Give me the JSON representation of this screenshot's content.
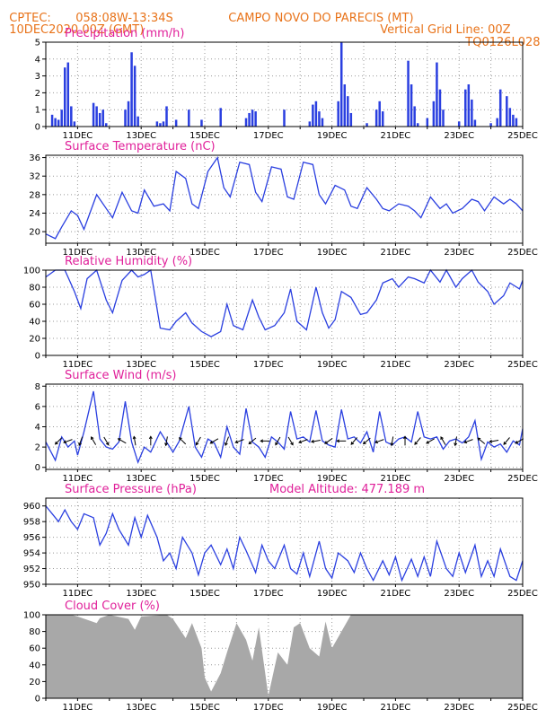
{
  "header": {
    "line1_left": "CPTEC:",
    "line1_coords": "058:08W-13:34S",
    "line1_place": "CAMPO NOVO DO PARECIS (MT)",
    "line2_left": "10DEC2020 00Z (GMT)",
    "line2_right": "Vertical Grid Line: 00Z",
    "line3_right": "TQ0126L028"
  },
  "colors": {
    "header": "#e8731a",
    "title": "#e0209a",
    "series": "#2a3fe0",
    "cloud": "#a8a8a8"
  },
  "x_axis": {
    "labels": [
      "11DEC",
      "13DEC",
      "15DEC",
      "17DEC",
      "19DEC",
      "21DEC",
      "23DEC",
      "25DEC"
    ]
  },
  "chart_data": [
    {
      "id": "precip",
      "type": "bar",
      "title": "Precipitation (mm/h)",
      "ylim": [
        0,
        5
      ],
      "yticks": [
        0,
        1,
        2,
        3,
        4,
        5
      ],
      "xlim_days": [
        10,
        25
      ],
      "x_days": [
        10.2,
        10.3,
        10.4,
        10.5,
        10.6,
        10.7,
        10.8,
        10.9,
        11.5,
        11.6,
        11.7,
        11.8,
        11.9,
        12.5,
        12.6,
        12.7,
        12.8,
        12.9,
        13.5,
        13.6,
        13.7,
        13.8,
        14.1,
        14.5,
        14.9,
        15.5,
        16.3,
        16.4,
        16.5,
        16.6,
        17.5,
        18.3,
        18.4,
        18.5,
        18.6,
        18.7,
        19.2,
        19.3,
        19.4,
        19.5,
        19.6,
        20.1,
        20.4,
        20.5,
        20.6,
        21.4,
        21.5,
        21.6,
        21.7,
        22.0,
        22.2,
        22.3,
        22.4,
        22.5,
        23.0,
        23.2,
        23.3,
        23.4,
        23.5,
        24.0,
        24.2,
        24.3,
        24.5,
        24.6,
        24.7,
        24.8
      ],
      "values": [
        0.7,
        0.5,
        0.4,
        1.0,
        3.5,
        3.8,
        1.2,
        0.3,
        1.4,
        1.2,
        0.8,
        1.0,
        0.2,
        1.0,
        1.5,
        4.4,
        3.6,
        0.6,
        0.3,
        0.2,
        0.3,
        1.2,
        0.4,
        1.0,
        0.4,
        1.1,
        0.5,
        0.8,
        1.0,
        0.9,
        1.0,
        0.3,
        1.3,
        1.5,
        0.9,
        0.5,
        1.5,
        5.0,
        2.5,
        1.8,
        0.8,
        0.2,
        1.0,
        1.5,
        0.9,
        3.9,
        2.5,
        1.2,
        0.2,
        0.5,
        1.5,
        3.8,
        2.2,
        1.0,
        0.3,
        2.2,
        2.5,
        1.6,
        0.4,
        0.2,
        0.5,
        2.2,
        1.8,
        1.1,
        0.7,
        0.5
      ]
    },
    {
      "id": "temp",
      "type": "line",
      "title": "Surface Temperature (nC)",
      "ylim": [
        17.5,
        36.5
      ],
      "yticks": [
        20,
        24,
        28,
        32,
        36
      ],
      "x_days": [
        10.0,
        10.3,
        10.5,
        10.8,
        11.0,
        11.2,
        11.6,
        11.9,
        12.1,
        12.4,
        12.7,
        12.9,
        13.1,
        13.4,
        13.7,
        13.9,
        14.1,
        14.4,
        14.6,
        14.8,
        15.1,
        15.4,
        15.6,
        15.8,
        16.1,
        16.4,
        16.6,
        16.8,
        17.1,
        17.4,
        17.6,
        17.8,
        18.1,
        18.4,
        18.6,
        18.8,
        19.1,
        19.4,
        19.6,
        19.8,
        20.1,
        20.4,
        20.6,
        20.8,
        21.1,
        21.4,
        21.6,
        21.8,
        22.1,
        22.4,
        22.6,
        22.8,
        23.1,
        23.4,
        23.6,
        23.8,
        24.1,
        24.4,
        24.6,
        24.8,
        25.0
      ],
      "values": [
        19.5,
        18.5,
        21.0,
        24.5,
        23.5,
        20.5,
        28.0,
        25.0,
        23.0,
        28.5,
        24.5,
        24.0,
        29.0,
        25.5,
        26.0,
        24.5,
        33.0,
        31.5,
        26.0,
        25.0,
        33.0,
        36.0,
        29.5,
        27.5,
        35.0,
        34.5,
        28.5,
        26.5,
        34.0,
        33.5,
        27.5,
        27.0,
        35.0,
        34.5,
        28.0,
        26.0,
        30.0,
        29.0,
        25.5,
        25.0,
        29.5,
        27.0,
        25.0,
        24.5,
        26.0,
        25.5,
        24.5,
        23.0,
        27.5,
        25.0,
        26.0,
        24.0,
        25.0,
        27.0,
        26.5,
        24.5,
        27.5,
        26.0,
        27.0,
        26.0,
        24.5
      ]
    },
    {
      "id": "rh",
      "type": "line",
      "title": "Relative Humidity (%)",
      "ylim": [
        0,
        100
      ],
      "yticks": [
        0,
        20,
        40,
        60,
        80,
        100
      ],
      "x_days": [
        10.0,
        10.3,
        10.6,
        10.9,
        11.1,
        11.3,
        11.6,
        11.9,
        12.1,
        12.4,
        12.7,
        12.9,
        13.1,
        13.3,
        13.6,
        13.9,
        14.1,
        14.4,
        14.6,
        14.9,
        15.2,
        15.5,
        15.7,
        15.9,
        16.2,
        16.5,
        16.7,
        16.9,
        17.2,
        17.5,
        17.7,
        17.9,
        18.2,
        18.5,
        18.7,
        18.9,
        19.1,
        19.3,
        19.6,
        19.9,
        20.1,
        20.4,
        20.6,
        20.9,
        21.1,
        21.4,
        21.6,
        21.9,
        22.1,
        22.4,
        22.6,
        22.9,
        23.1,
        23.4,
        23.6,
        23.9,
        24.1,
        24.4,
        24.6,
        24.9,
        25.0
      ],
      "values": [
        92,
        100,
        100,
        75,
        55,
        90,
        100,
        65,
        50,
        88,
        100,
        92,
        95,
        100,
        32,
        30,
        40,
        50,
        38,
        28,
        22,
        28,
        60,
        35,
        30,
        65,
        45,
        30,
        35,
        50,
        78,
        40,
        30,
        80,
        50,
        32,
        42,
        75,
        68,
        48,
        50,
        65,
        85,
        90,
        80,
        92,
        90,
        85,
        100,
        86,
        100,
        80,
        90,
        100,
        86,
        75,
        60,
        70,
        85,
        78,
        88
      ]
    },
    {
      "id": "wind",
      "type": "line",
      "title": "Surface Wind (m/s)",
      "ylim": [
        -0.2,
        8.2
      ],
      "yticks": [
        0,
        2,
        4,
        6,
        8
      ],
      "x_days": [
        10.0,
        10.3,
        10.5,
        10.7,
        10.9,
        11.0,
        11.2,
        11.5,
        11.7,
        11.9,
        12.1,
        12.3,
        12.5,
        12.7,
        12.9,
        13.1,
        13.3,
        13.6,
        13.8,
        14.0,
        14.2,
        14.5,
        14.7,
        14.9,
        15.1,
        15.3,
        15.5,
        15.7,
        15.9,
        16.1,
        16.3,
        16.5,
        16.7,
        16.9,
        17.1,
        17.3,
        17.5,
        17.7,
        17.9,
        18.1,
        18.3,
        18.5,
        18.7,
        18.9,
        19.1,
        19.3,
        19.5,
        19.7,
        19.9,
        20.1,
        20.3,
        20.5,
        20.7,
        20.9,
        21.1,
        21.3,
        21.5,
        21.7,
        21.9,
        22.1,
        22.3,
        22.5,
        22.7,
        22.9,
        23.1,
        23.3,
        23.5,
        23.7,
        23.9,
        24.1,
        24.3,
        24.5,
        24.7,
        24.9,
        25.0
      ],
      "values": [
        2.5,
        0.7,
        3.0,
        2.0,
        2.6,
        1.2,
        3.5,
        7.5,
        2.8,
        2.0,
        1.8,
        2.5,
        6.5,
        2.5,
        0.5,
        2.0,
        1.5,
        3.5,
        2.5,
        1.5,
        2.6,
        6.0,
        2.0,
        1.0,
        2.8,
        2.4,
        1.0,
        4.0,
        2.0,
        1.3,
        5.8,
        2.5,
        2.0,
        1.0,
        3.0,
        2.5,
        1.8,
        5.5,
        2.8,
        3.0,
        2.5,
        5.6,
        2.6,
        2.2,
        2.0,
        5.7,
        2.8,
        3.0,
        2.4,
        3.5,
        1.5,
        5.5,
        2.5,
        2.2,
        2.8,
        3.0,
        2.5,
        5.5,
        3.0,
        2.8,
        3.0,
        1.8,
        2.6,
        2.8,
        2.4,
        3.0,
        4.6,
        0.8,
        2.5,
        2.0,
        2.3,
        1.5,
        2.6,
        2.2,
        3.8
      ]
    },
    {
      "id": "pres",
      "type": "line",
      "title": "Surface Pressure (hPa)",
      "annotation": "Model Altitude: 477.189  m",
      "ylim": [
        950,
        961
      ],
      "yticks": [
        950,
        952,
        954,
        956,
        958,
        960
      ],
      "x_days": [
        10.0,
        10.2,
        10.4,
        10.6,
        10.8,
        11.0,
        11.2,
        11.5,
        11.7,
        11.9,
        12.1,
        12.3,
        12.6,
        12.8,
        13.0,
        13.2,
        13.5,
        13.7,
        13.9,
        14.1,
        14.3,
        14.6,
        14.8,
        15.0,
        15.2,
        15.5,
        15.7,
        15.9,
        16.1,
        16.3,
        16.6,
        16.8,
        17.0,
        17.2,
        17.5,
        17.7,
        17.9,
        18.1,
        18.3,
        18.6,
        18.8,
        19.0,
        19.2,
        19.5,
        19.7,
        19.9,
        20.1,
        20.3,
        20.6,
        20.8,
        21.0,
        21.2,
        21.5,
        21.7,
        21.9,
        22.1,
        22.3,
        22.6,
        22.8,
        23.0,
        23.2,
        23.5,
        23.7,
        23.9,
        24.1,
        24.3,
        24.6,
        24.8,
        25.0
      ],
      "values": [
        960,
        959,
        958,
        959.5,
        958,
        957,
        959,
        958.5,
        955,
        956.5,
        959,
        957,
        955,
        958.5,
        956,
        958.8,
        956,
        953,
        954,
        952,
        956,
        954,
        951.2,
        954,
        955,
        952.5,
        954.5,
        952,
        956,
        954.3,
        951.5,
        955,
        953,
        952,
        955,
        952,
        951.3,
        954,
        951,
        955.5,
        952,
        950.8,
        954,
        953,
        951.5,
        954,
        952,
        950.5,
        953,
        951.2,
        953.5,
        950.5,
        953.2,
        951,
        953.5,
        951,
        955.5,
        952,
        951,
        954,
        951.5,
        955,
        951,
        953,
        951,
        954.5,
        951,
        950.5,
        953
      ]
    },
    {
      "id": "cloud",
      "type": "area",
      "title": "Cloud Cover (%)",
      "ylim": [
        0,
        100
      ],
      "yticks": [
        0,
        20,
        40,
        60,
        80,
        100
      ],
      "x_days": [
        10.0,
        10.8,
        11.0,
        11.6,
        11.7,
        12.0,
        12.6,
        12.8,
        13.0,
        13.8,
        14.0,
        14.4,
        14.6,
        14.9,
        15.0,
        15.2,
        15.5,
        15.7,
        16.0,
        16.3,
        16.5,
        16.7,
        17.0,
        17.3,
        17.6,
        17.8,
        18.0,
        18.3,
        18.6,
        18.8,
        19.0,
        19.3,
        19.6,
        20.0,
        21.0,
        22.0,
        23.0,
        24.0,
        25.0
      ],
      "values": [
        100,
        100,
        98,
        90,
        96,
        100,
        95,
        82,
        98,
        100,
        95,
        72,
        90,
        60,
        25,
        8,
        30,
        55,
        90,
        70,
        45,
        85,
        3,
        55,
        40,
        85,
        90,
        60,
        50,
        92,
        60,
        80,
        100,
        100,
        100,
        100,
        100,
        100,
        100
      ]
    }
  ]
}
